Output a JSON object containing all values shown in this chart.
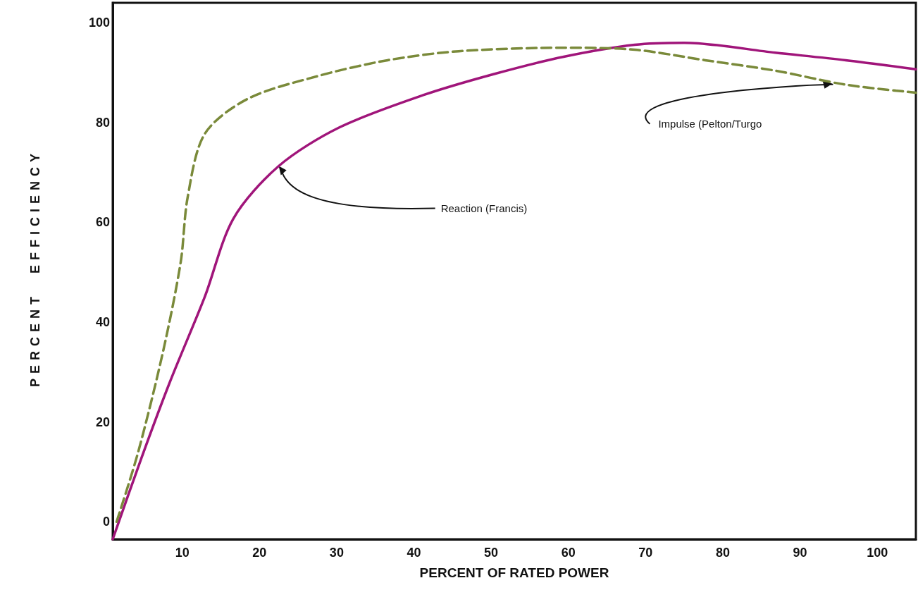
{
  "chart_data": {
    "type": "line",
    "xlabel": "PERCENT OF RATED POWER",
    "ylabel": "PERCENT EFFICIENCY",
    "xlim": [
      1,
      105
    ],
    "ylim": [
      -3.5,
      104
    ],
    "xticks": [
      10,
      20,
      30,
      40,
      50,
      60,
      70,
      80,
      90,
      100
    ],
    "yticks": [
      0,
      20,
      40,
      60,
      80,
      100
    ],
    "grid": false,
    "marker": "none",
    "series": [
      {
        "color": "#a0157a",
        "line_style": "solid",
        "x": [
          1,
          4.7,
          8.4,
          12.9,
          16.6,
          22.5,
          30.3,
          41.2,
          50.3,
          59.4,
          68.6,
          75,
          86.8,
          95.9,
          105
        ],
        "values": [
          -3.5,
          12.7,
          28,
          45,
          60.7,
          71.3,
          79,
          85.5,
          89.7,
          93.2,
          95.6,
          96,
          94,
          92.5,
          90.7
        ]
      },
      {
        "color": "#7a8a3a",
        "line_style": "dashed",
        "x": [
          1.5,
          4.3,
          7.5,
          9.8,
          10.7,
          12.9,
          18.4,
          27.5,
          36.6,
          45.8,
          59.4,
          68.6,
          77.7,
          86.8,
          95.9,
          105
        ],
        "values": [
          0,
          14,
          34,
          52,
          65,
          77.7,
          84.7,
          89.3,
          92.5,
          94.3,
          95,
          94.6,
          92.5,
          90.4,
          87.6,
          86
        ]
      }
    ],
    "annotations": [
      {
        "text": "Reaction (Francis)",
        "x": 22.5,
        "y": 71.3
      },
      {
        "text": "Impulse (Pelton/Turgo",
        "x": 94,
        "y": 88.2
      }
    ]
  }
}
